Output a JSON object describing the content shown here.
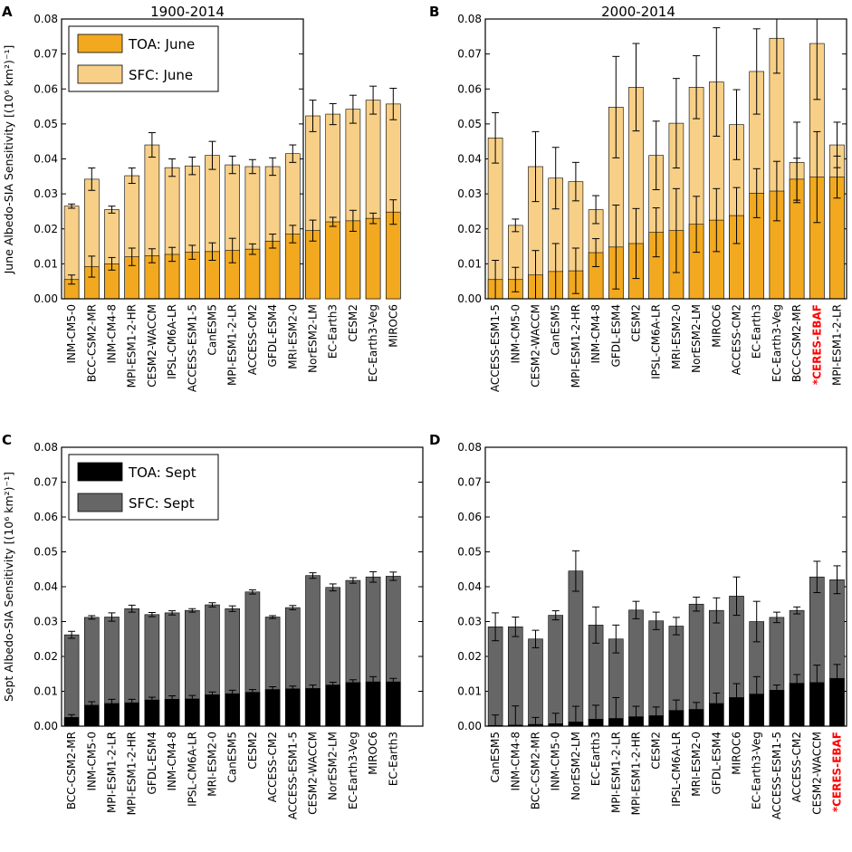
{
  "colors": {
    "june_toa": "#f2a91f",
    "june_sfc": "#f7cf86",
    "sept_toa": "#000000",
    "sept_sfc": "#666666",
    "highlight": "#ff0000"
  },
  "chart_data": [
    {
      "panel": "A",
      "type": "bar",
      "title": "1900-2014",
      "ylabel": "June Albedo-SIA Sensitivity [(10⁶ km²)⁻¹]",
      "ylim": [
        0,
        0.08
      ],
      "yticks": [
        "0.00",
        "0.01",
        "0.02",
        "0.03",
        "0.04",
        "0.05",
        "0.06",
        "0.07",
        "0.08"
      ],
      "legend": {
        "position": "top-left",
        "entries": [
          "TOA: June",
          "SFC: June"
        ]
      },
      "categories": [
        "INM-CM5-0",
        "BCC-CSM2-MR",
        "INM-CM4-8",
        "MPI-ESM1-2-HR",
        "CESM2-WACCM",
        "IPSL-CM6A-LR",
        "ACCESS-ESM1-5",
        "CanESM5",
        "MPI-ESM1-2-LR",
        "ACCESS-CM2",
        "GFDL-ESM4",
        "MRI-ESM2-0",
        "NorESM2-LM",
        "EC-Earth3",
        "CESM2",
        "EC-Earth3-Veg",
        "MIROC6"
      ],
      "highlight": [],
      "series": [
        {
          "name": "TOA: June",
          "values": [
            0.0055,
            0.0092,
            0.01,
            0.012,
            0.0123,
            0.0127,
            0.0133,
            0.0135,
            0.0138,
            0.0142,
            0.0165,
            0.0185,
            0.0195,
            0.022,
            0.0223,
            0.023,
            0.0248
          ],
          "errors": [
            0.0013,
            0.003,
            0.0018,
            0.0025,
            0.002,
            0.002,
            0.002,
            0.0025,
            0.0035,
            0.0015,
            0.002,
            0.0025,
            0.003,
            0.0013,
            0.003,
            0.0015,
            0.0035
          ]
        },
        {
          "name": "SFC: June",
          "values": [
            0.0265,
            0.0342,
            0.0255,
            0.0352,
            0.044,
            0.0375,
            0.038,
            0.041,
            0.0383,
            0.0378,
            0.0378,
            0.0415,
            0.0523,
            0.0528,
            0.0542,
            0.0568,
            0.0557
          ],
          "errors": [
            0.0006,
            0.0032,
            0.001,
            0.0022,
            0.0035,
            0.0025,
            0.0025,
            0.004,
            0.0025,
            0.002,
            0.0025,
            0.0025,
            0.0045,
            0.003,
            0.004,
            0.004,
            0.0045
          ]
        }
      ]
    },
    {
      "panel": "B",
      "type": "bar",
      "title": "2000-2014",
      "ylabel": "",
      "ylim": [
        0,
        0.08
      ],
      "yticks": [
        "0.00",
        "0.01",
        "0.02",
        "0.03",
        "0.04",
        "0.05",
        "0.06",
        "0.07",
        "0.08"
      ],
      "legend": null,
      "categories": [
        "ACCESS-ESM1-5",
        "INM-CM5-0",
        "CESM2-WACCM",
        "CanESM5",
        "MPI-ESM1-2-HR",
        "INM-CM4-8",
        "GFDL-ESM4",
        "CESM2",
        "IPSL-CM6A-LR",
        "MRI-ESM2-0",
        "NorESM2-LM",
        "MIROC6",
        "ACCESS-CM2",
        "EC-Earth3",
        "EC-Earth3-Veg",
        "BCC-CSM2-MR",
        "*CERES-EBAF",
        "MPI-ESM1-2-LR"
      ],
      "highlight": [
        "*CERES-EBAF"
      ],
      "series": [
        {
          "name": "TOA: June",
          "values": [
            0.0055,
            0.0055,
            0.0068,
            0.0078,
            0.008,
            0.0132,
            0.0148,
            0.0158,
            0.019,
            0.0195,
            0.0213,
            0.0225,
            0.0238,
            0.0302,
            0.0308,
            0.0342,
            0.0348,
            0.0348
          ],
          "errors": [
            0.0055,
            0.0035,
            0.007,
            0.008,
            0.0065,
            0.004,
            0.012,
            0.01,
            0.007,
            0.012,
            0.008,
            0.009,
            0.008,
            0.007,
            0.0085,
            0.006,
            0.013,
            0.006
          ]
        },
        {
          "name": "SFC: June",
          "values": [
            0.046,
            0.021,
            0.0378,
            0.0345,
            0.0335,
            0.0255,
            0.0548,
            0.0605,
            0.041,
            0.0502,
            0.0605,
            0.062,
            0.0498,
            0.065,
            0.0745,
            0.039,
            0.073,
            0.044
          ],
          "errors": [
            0.0072,
            0.0018,
            0.01,
            0.0088,
            0.0055,
            0.004,
            0.0145,
            0.0125,
            0.0098,
            0.0128,
            0.009,
            0.0155,
            0.01,
            0.0122,
            0.01,
            0.0115,
            0.016,
            0.0065
          ]
        }
      ]
    },
    {
      "panel": "C",
      "type": "bar",
      "title": "",
      "ylabel": "Sept Albedo-SIA Sensitivity [(10⁶ km²)⁻¹]",
      "ylim": [
        0,
        0.08
      ],
      "yticks": [
        "0.00",
        "0.01",
        "0.02",
        "0.03",
        "0.04",
        "0.05",
        "0.06",
        "0.07",
        "0.08"
      ],
      "legend": {
        "position": "top-left",
        "entries": [
          "TOA: Sept",
          "SFC: Sept"
        ]
      },
      "categories": [
        "BCC-CSM2-MR",
        "INM-CM5-0",
        "MPI-ESM1-2-LR",
        "MPI-ESM1-2-HR",
        "GFDL-ESM4",
        "INM-CM4-8",
        "IPSL-CM6A-LR",
        "MRI-ESM2-0",
        "CanESM5",
        "CESM2",
        "ACCESS-CM2",
        "ACCESS-ESM1-5",
        "CESM2-WACCM",
        "NorESM2-LM",
        "EC-Earth3-Veg",
        "MIROC6",
        "EC-Earth3"
      ],
      "highlight": [],
      "series": [
        {
          "name": "TOA: Sept",
          "values": [
            0.0025,
            0.006,
            0.0065,
            0.0067,
            0.0075,
            0.0077,
            0.0078,
            0.009,
            0.0093,
            0.0097,
            0.0105,
            0.0107,
            0.0108,
            0.0118,
            0.0125,
            0.0127,
            0.0127
          ],
          "errors": [
            0.0008,
            0.001,
            0.0012,
            0.001,
            0.0008,
            0.001,
            0.001,
            0.0008,
            0.001,
            0.0008,
            0.0008,
            0.0008,
            0.001,
            0.0008,
            0.0008,
            0.0015,
            0.001
          ]
        },
        {
          "name": "SFC: Sept",
          "values": [
            0.0262,
            0.0312,
            0.0313,
            0.0337,
            0.032,
            0.0325,
            0.0332,
            0.0348,
            0.0337,
            0.0385,
            0.0313,
            0.034,
            0.0432,
            0.0398,
            0.0418,
            0.0428,
            0.043
          ],
          "errors": [
            0.001,
            0.0005,
            0.0012,
            0.001,
            0.0006,
            0.0006,
            0.0005,
            0.0006,
            0.0008,
            0.0006,
            0.0004,
            0.0006,
            0.0008,
            0.001,
            0.0008,
            0.0015,
            0.0012
          ]
        }
      ]
    },
    {
      "panel": "D",
      "type": "bar",
      "title": "",
      "ylabel": "",
      "ylim": [
        0,
        0.08
      ],
      "yticks": [
        "0.00",
        "0.01",
        "0.02",
        "0.03",
        "0.04",
        "0.05",
        "0.06",
        "0.07",
        "0.08"
      ],
      "legend": null,
      "categories": [
        "CanESM5",
        "INM-CM4-8",
        "BCC-CSM2-MR",
        "INM-CM5-0",
        "NorESM2-LM",
        "EC-Earth3",
        "MPI-ESM1-2-LR",
        "MPI-ESM1-2-HR",
        "CESM2",
        "IPSL-CM6A-LR",
        "MRI-ESM2-0",
        "GFDL-ESM4",
        "MIROC6",
        "EC-Earth3-Veg",
        "ACCESS-ESM1-5",
        "ACCESS-CM2",
        "CESM2-WACCM",
        "*CERES-EBAF"
      ],
      "highlight": [
        "*CERES-EBAF"
      ],
      "series": [
        {
          "name": "TOA: Sept",
          "values": [
            0.0002,
            0.0003,
            0.0005,
            0.0007,
            0.0012,
            0.002,
            0.0022,
            0.0027,
            0.003,
            0.0045,
            0.0048,
            0.0065,
            0.0082,
            0.0092,
            0.0103,
            0.0123,
            0.0125,
            0.0137
          ],
          "errors": [
            0.003,
            0.0055,
            0.002,
            0.003,
            0.0045,
            0.004,
            0.006,
            0.003,
            0.0025,
            0.003,
            0.002,
            0.003,
            0.004,
            0.005,
            0.0015,
            0.0025,
            0.005,
            0.004
          ]
        },
        {
          "name": "SFC: Sept",
          "values": [
            0.0285,
            0.0285,
            0.025,
            0.0318,
            0.0445,
            0.029,
            0.025,
            0.0333,
            0.0302,
            0.0287,
            0.035,
            0.0332,
            0.0373,
            0.03,
            0.0312,
            0.0332,
            0.0428,
            0.042
          ],
          "errors": [
            0.004,
            0.0028,
            0.0025,
            0.0013,
            0.0058,
            0.0052,
            0.004,
            0.0025,
            0.0025,
            0.0025,
            0.002,
            0.0036,
            0.0055,
            0.0058,
            0.0015,
            0.001,
            0.0045,
            0.004
          ]
        }
      ]
    }
  ]
}
